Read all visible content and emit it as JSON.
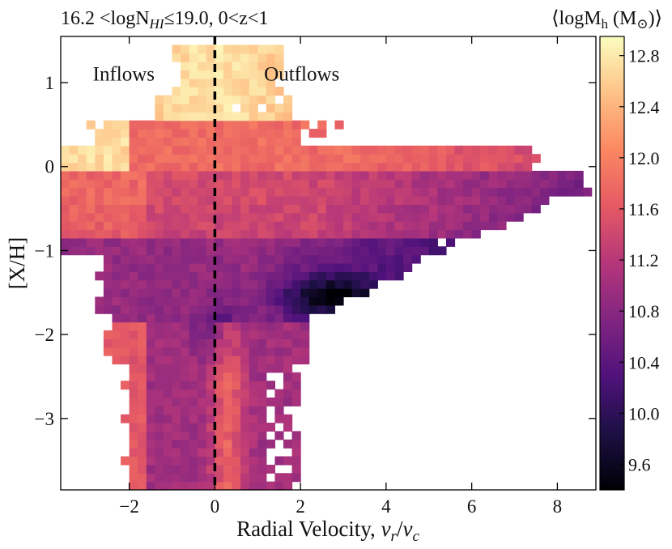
{
  "chart_data": {
    "type": "heatmap",
    "title_left": "16.2 <logN",
    "title_left_sub": "HI",
    "title_left_rest": "≤19.0,  0<z<1",
    "title_right": "⟨logM",
    "title_right_sub": "h",
    "title_right_rest": " (M",
    "title_right_sub2": "⊙",
    "title_right_end": ")⟩",
    "xlabel": "Radial Velocity, ",
    "xlabel_math": "v",
    "xlabel_sub1": "r",
    "xlabel_mid": "/",
    "xlabel_math2": "v",
    "xlabel_sub2": "c",
    "ylabel": "[X/H]",
    "xlim": [
      -3.6,
      8.9
    ],
    "ylim": [
      -3.85,
      1.55
    ],
    "xticks": [
      -2,
      0,
      2,
      4,
      6,
      8
    ],
    "xtick_labels": [
      "−2",
      "0",
      "2",
      "4",
      "6",
      "8"
    ],
    "yticks": [
      -3,
      -2,
      -1,
      0,
      1
    ],
    "ytick_labels": [
      "−3",
      "−2",
      "−1",
      "0",
      "1"
    ],
    "annotations": [
      {
        "text": "Inflows",
        "x": -2.85,
        "y": 1.1
      },
      {
        "text": "Outflows",
        "x": 1.15,
        "y": 1.1
      }
    ],
    "vline": {
      "x": 0,
      "style": "dashed"
    },
    "colorbar": {
      "range": [
        9.4,
        12.95
      ],
      "ticks": [
        9.6,
        10.0,
        10.4,
        10.8,
        11.2,
        11.6,
        12.0,
        12.4,
        12.8
      ],
      "tick_labels": [
        "9.6",
        "10.0",
        "10.4",
        "10.8",
        "11.2",
        "11.6",
        "12.0",
        "12.4",
        "12.8"
      ],
      "colormap": "magma"
    },
    "bin_size": {
      "vx": 0.2,
      "xh": 0.1
    },
    "colormap_stops": [
      "#000004",
      "#1c1044",
      "#4f127b",
      "#812581",
      "#b5367a",
      "#e55964",
      "#fb8761",
      "#fec287",
      "#fcfdbf"
    ]
  }
}
